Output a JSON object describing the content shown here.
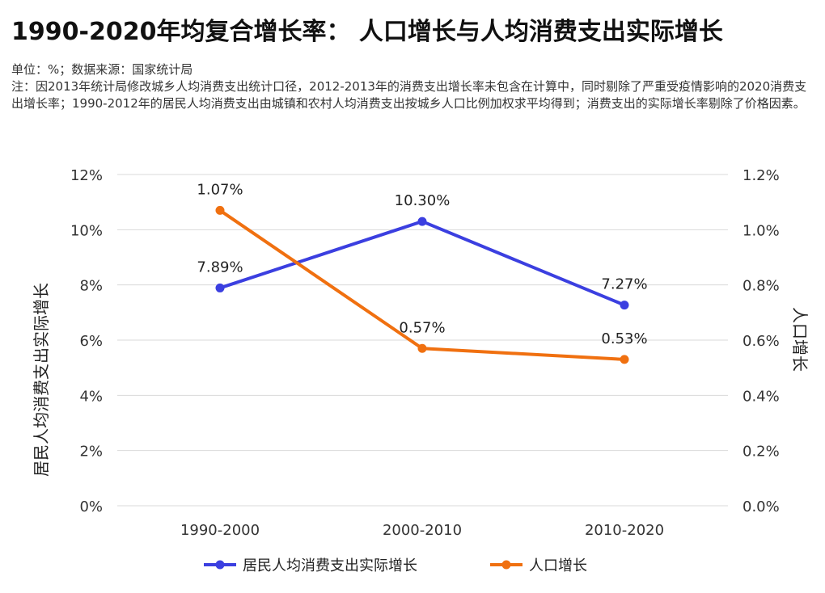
{
  "header": {
    "title": "1990-2020年均复合增长率： 人口增长与人均消费支出实际增长",
    "unit": "单位：%；数据来源：国家统计局",
    "note": "注：因2013年统计局修改城乡人均消费支出统计口径，2012-2013年的消费支出增长率未包含在计算中，同时剔除了严重受疫情影响的2020消费支出增长率；1990-2012年的居民人均消费支出由城镇和农村人均消费支出按城乡人口比例加权求平均得到；消费支出的实际增长率剔除了价格因素。"
  },
  "chart_data": {
    "type": "line",
    "categories": [
      "1990-2000",
      "2000-2010",
      "2010-2020"
    ],
    "series": [
      {
        "name": "居民人均消费支出实际增长",
        "axis": "left",
        "color": "#3b3fe0",
        "values": [
          7.89,
          10.3,
          7.27
        ],
        "labels": [
          "7.89%",
          "10.30%",
          "7.27%"
        ]
      },
      {
        "name": "人口增长",
        "axis": "right",
        "color": "#f07010",
        "values": [
          1.07,
          0.57,
          0.53
        ],
        "labels": [
          "1.07%",
          "0.57%",
          "0.53%"
        ]
      }
    ],
    "y_left": {
      "label": "居民人均消费支出实际增长",
      "ylim": [
        0,
        12
      ],
      "ticks": [
        0,
        2,
        4,
        6,
        8,
        10,
        12
      ],
      "tick_labels": [
        "0%",
        "2%",
        "4%",
        "6%",
        "8%",
        "10%",
        "12%"
      ]
    },
    "y_right": {
      "label": "人口增长",
      "ylim": [
        0,
        1.2
      ],
      "ticks": [
        0,
        0.2,
        0.4,
        0.6,
        0.8,
        1.0,
        1.2
      ],
      "tick_labels": [
        "0.0%",
        "0.2%",
        "0.4%",
        "0.6%",
        "0.8%",
        "1.0%",
        "1.2%"
      ]
    },
    "grid": true,
    "legend_position": "bottom-center"
  }
}
